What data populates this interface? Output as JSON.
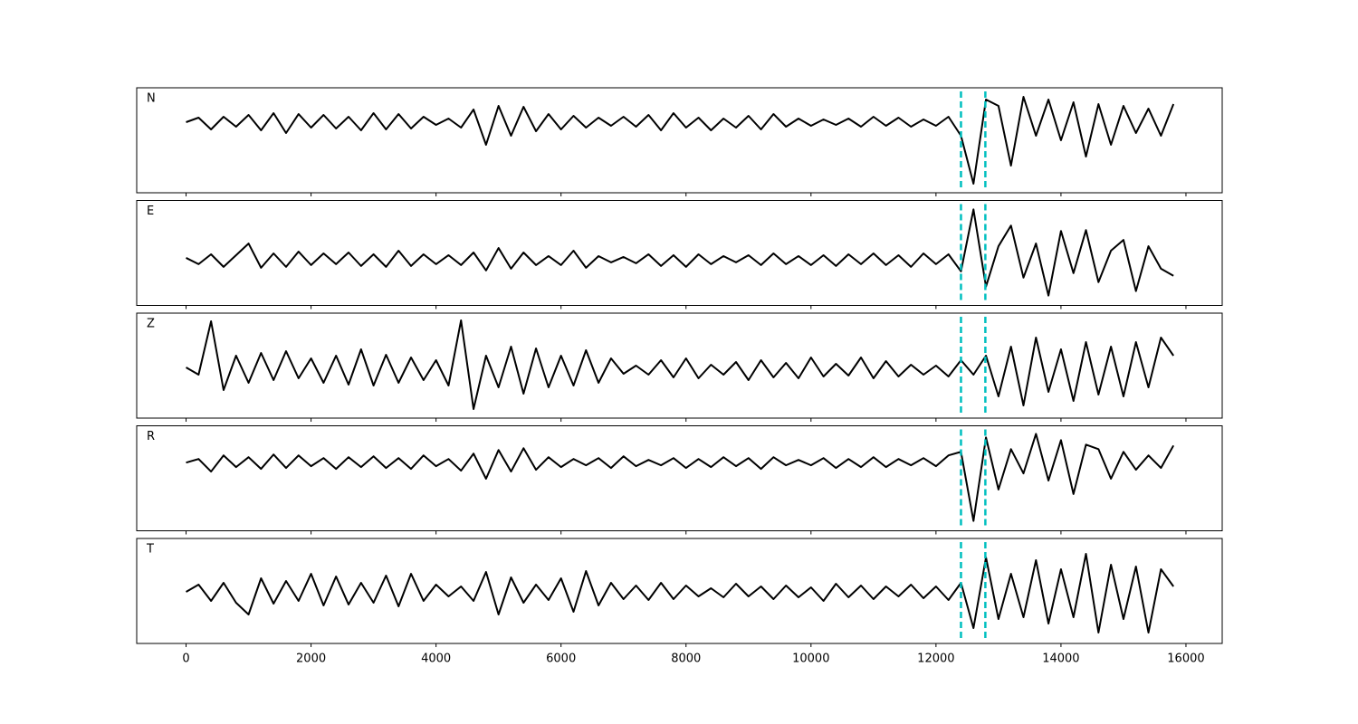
{
  "chart_data": {
    "type": "line",
    "stacked": true,
    "color": "#000000",
    "xlim": [
      -790,
      16580
    ],
    "xticks": [
      0,
      2000,
      4000,
      6000,
      8000,
      10000,
      12000,
      14000,
      16000
    ],
    "picks": [
      12400,
      12790
    ],
    "pick_color": "#00bfbf",
    "x": [
      0,
      200,
      400,
      600,
      800,
      1000,
      1200,
      1400,
      1600,
      1800,
      2000,
      2200,
      2400,
      2600,
      2800,
      3000,
      3200,
      3400,
      3600,
      3800,
      4000,
      4200,
      4400,
      4600,
      4800,
      5000,
      5200,
      5400,
      5600,
      5800,
      6000,
      6200,
      6400,
      6600,
      6800,
      7000,
      7200,
      7400,
      7600,
      7800,
      8000,
      8200,
      8400,
      8600,
      8800,
      9000,
      9200,
      9400,
      9600,
      9800,
      10000,
      10200,
      10400,
      10600,
      10800,
      11000,
      11200,
      11400,
      11600,
      11800,
      12000,
      12200,
      12400,
      12600,
      12800,
      13000,
      13200,
      13400,
      13600,
      13800,
      14000,
      14200,
      14400,
      14600,
      14800,
      15000,
      15200,
      15400,
      15600,
      15800
    ],
    "series": [
      {
        "name": "N",
        "ylim": [
          -7.8,
          3.8
        ],
        "values": [
          0,
          0.5,
          -0.8,
          0.6,
          -0.5,
          0.8,
          -0.9,
          1.0,
          -1.2,
          0.9,
          -0.6,
          0.8,
          -0.7,
          0.6,
          -0.9,
          1.0,
          -0.8,
          0.9,
          -0.7,
          0.6,
          -0.3,
          0.4,
          -0.6,
          1.4,
          -2.5,
          1.8,
          -1.5,
          1.7,
          -1.0,
          0.9,
          -0.8,
          0.7,
          -0.6,
          0.5,
          -0.4,
          0.6,
          -0.5,
          0.8,
          -0.9,
          1.0,
          -0.6,
          0.5,
          -0.9,
          0.4,
          -0.6,
          0.7,
          -0.8,
          0.9,
          -0.5,
          0.4,
          -0.4,
          0.3,
          -0.3,
          0.4,
          -0.5,
          0.6,
          -0.4,
          0.5,
          -0.5,
          0.3,
          -0.4,
          0.6,
          -1.5,
          -6.8,
          2.5,
          1.8,
          -4.8,
          2.8,
          -1.5,
          2.5,
          -2.0,
          2.2,
          -3.8,
          2.0,
          -2.5,
          1.8,
          -1.2,
          1.5,
          -1.5,
          2.0
        ]
      },
      {
        "name": "E",
        "ylim": [
          -5.1,
          6.6
        ],
        "values": [
          0.2,
          -0.5,
          0.6,
          -0.8,
          0.5,
          1.8,
          -0.9,
          0.7,
          -0.8,
          0.9,
          -0.6,
          0.7,
          -0.5,
          0.8,
          -0.7,
          0.6,
          -0.8,
          1.0,
          -0.7,
          0.6,
          -0.5,
          0.5,
          -0.6,
          0.8,
          -1.2,
          1.3,
          -1.0,
          0.8,
          -0.6,
          0.4,
          -0.6,
          1.0,
          -0.9,
          0.4,
          -0.3,
          0.3,
          -0.4,
          0.6,
          -0.7,
          0.5,
          -0.8,
          0.6,
          -0.5,
          0.4,
          -0.3,
          0.5,
          -0.6,
          0.7,
          -0.5,
          0.4,
          -0.6,
          0.5,
          -0.7,
          0.6,
          -0.5,
          0.7,
          -0.6,
          0.5,
          -0.8,
          0.7,
          -0.5,
          0.6,
          -1.3,
          5.6,
          -3.0,
          1.5,
          3.8,
          -2.0,
          1.8,
          -4.0,
          3.2,
          -1.5,
          3.3,
          -2.5,
          1.0,
          2.2,
          -3.5,
          1.5,
          -1.0,
          -1.8
        ]
      },
      {
        "name": "Z",
        "ylim": [
          -5.4,
          6.2
        ],
        "values": [
          0.2,
          -0.6,
          5.3,
          -2.3,
          1.5,
          -1.5,
          1.8,
          -1.2,
          2.0,
          -1.0,
          1.2,
          -1.5,
          1.5,
          -1.7,
          2.2,
          -1.8,
          1.6,
          -1.5,
          1.3,
          -1.2,
          1.0,
          -1.8,
          5.4,
          -4.4,
          1.5,
          -2.0,
          2.5,
          -2.7,
          2.3,
          -2.0,
          1.5,
          -1.8,
          2.1,
          -1.5,
          1.2,
          -0.5,
          0.4,
          -0.6,
          1.0,
          -0.9,
          1.2,
          -1.0,
          0.5,
          -0.6,
          0.8,
          -1.2,
          1.0,
          -0.9,
          0.7,
          -1.0,
          1.3,
          -0.8,
          0.6,
          -0.7,
          1.3,
          -1.0,
          0.9,
          -0.8,
          0.5,
          -0.6,
          0.4,
          -0.8,
          1.0,
          -0.6,
          1.5,
          -3.0,
          2.5,
          -4.0,
          3.5,
          -2.5,
          2.2,
          -3.5,
          3.0,
          -2.8,
          2.5,
          -3.0,
          3.0,
          -2.0,
          3.5,
          1.5
        ]
      },
      {
        "name": "R",
        "ylim": [
          -7.6,
          4.1
        ],
        "values": [
          0,
          0.4,
          -1.0,
          0.8,
          -0.5,
          0.6,
          -0.7,
          0.9,
          -0.6,
          0.8,
          -0.4,
          0.5,
          -0.7,
          0.6,
          -0.5,
          0.7,
          -0.6,
          0.5,
          -0.7,
          0.8,
          -0.4,
          0.4,
          -0.9,
          1.0,
          -1.8,
          1.4,
          -1.0,
          1.6,
          -0.8,
          0.6,
          -0.5,
          0.4,
          -0.3,
          0.5,
          -0.6,
          0.7,
          -0.4,
          0.3,
          -0.3,
          0.5,
          -0.6,
          0.4,
          -0.5,
          0.6,
          -0.4,
          0.5,
          -0.7,
          0.6,
          -0.3,
          0.3,
          -0.3,
          0.5,
          -0.6,
          0.4,
          -0.5,
          0.6,
          -0.5,
          0.4,
          -0.3,
          0.5,
          -0.4,
          0.8,
          1.2,
          -6.5,
          2.8,
          -3.0,
          1.5,
          -1.2,
          3.2,
          -2.0,
          2.5,
          -3.5,
          2.0,
          1.5,
          -1.8,
          1.2,
          -0.8,
          0.8,
          -0.6,
          1.9
        ]
      },
      {
        "name": "T",
        "ylim": [
          -5.7,
          5.9
        ],
        "values": [
          0,
          0.8,
          -1.0,
          1.0,
          -1.2,
          -2.5,
          1.5,
          -1.3,
          1.2,
          -1.0,
          2.0,
          -1.5,
          1.7,
          -1.4,
          1.0,
          -1.2,
          1.8,
          -1.6,
          2.0,
          -1.0,
          0.8,
          -0.5,
          0.6,
          -1.0,
          2.2,
          -2.5,
          1.6,
          -1.2,
          0.8,
          -0.9,
          1.5,
          -2.2,
          2.3,
          -1.5,
          1.0,
          -0.8,
          0.7,
          -0.9,
          1.0,
          -0.8,
          0.7,
          -0.5,
          0.4,
          -0.6,
          0.9,
          -0.5,
          0.6,
          -0.8,
          0.7,
          -0.6,
          0.5,
          -1.0,
          0.9,
          -0.6,
          0.7,
          -0.8,
          0.6,
          -0.5,
          0.8,
          -0.7,
          0.6,
          -0.9,
          1.0,
          -4.0,
          3.8,
          -3.0,
          2.0,
          -2.8,
          3.5,
          -3.5,
          2.5,
          -2.8,
          4.2,
          -4.5,
          3.0,
          -3.0,
          2.8,
          -4.5,
          2.5,
          0.6
        ]
      }
    ]
  }
}
